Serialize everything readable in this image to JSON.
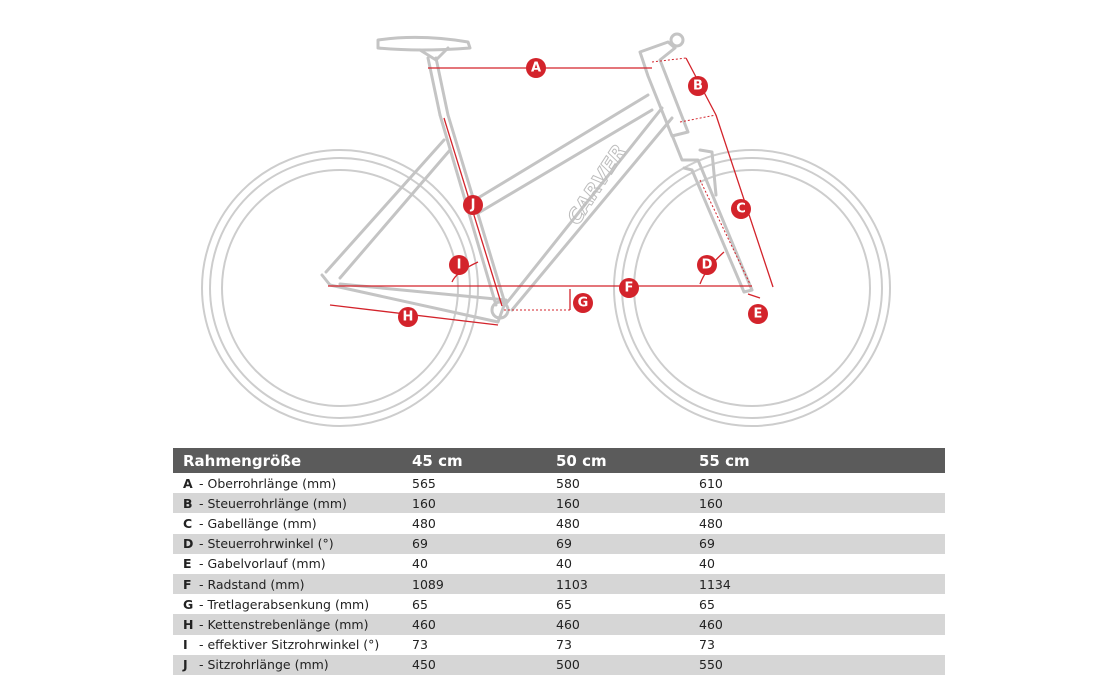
{
  "brand_logo": "CARVER",
  "dimension_markers": [
    "A",
    "B",
    "C",
    "D",
    "E",
    "F",
    "G",
    "H",
    "I",
    "J"
  ],
  "colors": {
    "accent": "#d3232b",
    "frame": "#c4c4c4",
    "header_bg": "#5b5b5b",
    "row_alt": "#d6d6d6"
  },
  "table": {
    "headers": [
      "Rahmengröße",
      "45 cm",
      "50 cm",
      "55 cm"
    ],
    "rows": [
      {
        "letter": "A",
        "label": "- Oberrohrlänge (mm)",
        "v45": "565",
        "v50": "580",
        "v55": "610"
      },
      {
        "letter": "B",
        "label": "- Steuerrohrlänge (mm)",
        "v45": "160",
        "v50": "160",
        "v55": "160"
      },
      {
        "letter": "C",
        "label": "- Gabellänge (mm)",
        "v45": "480",
        "v50": "480",
        "v55": "480"
      },
      {
        "letter": "D",
        "label": "- Steuerrohrwinkel (°)",
        "v45": "69",
        "v50": "69",
        "v55": "69"
      },
      {
        "letter": "E",
        "label": "- Gabelvorlauf (mm)",
        "v45": "40",
        "v50": "40",
        "v55": "40"
      },
      {
        "letter": "F",
        "label": "- Radstand (mm)",
        "v45": "1089",
        "v50": "1103",
        "v55": "1134"
      },
      {
        "letter": "G",
        "label": "- Tretlagerabsenkung (mm)",
        "v45": "65",
        "v50": "65",
        "v55": "65"
      },
      {
        "letter": "H",
        "label": "- Kettenstrebenlänge (mm)",
        "v45": "460",
        "v50": "460",
        "v55": "460"
      },
      {
        "letter": "I",
        "label": "- effektiver Sitzrohrwinkel (°)",
        "v45": "73",
        "v50": "73",
        "v55": "73"
      },
      {
        "letter": "J",
        "label": "- Sitzrohrlänge (mm)",
        "v45": "450",
        "v50": "500",
        "v55": "550"
      }
    ]
  }
}
